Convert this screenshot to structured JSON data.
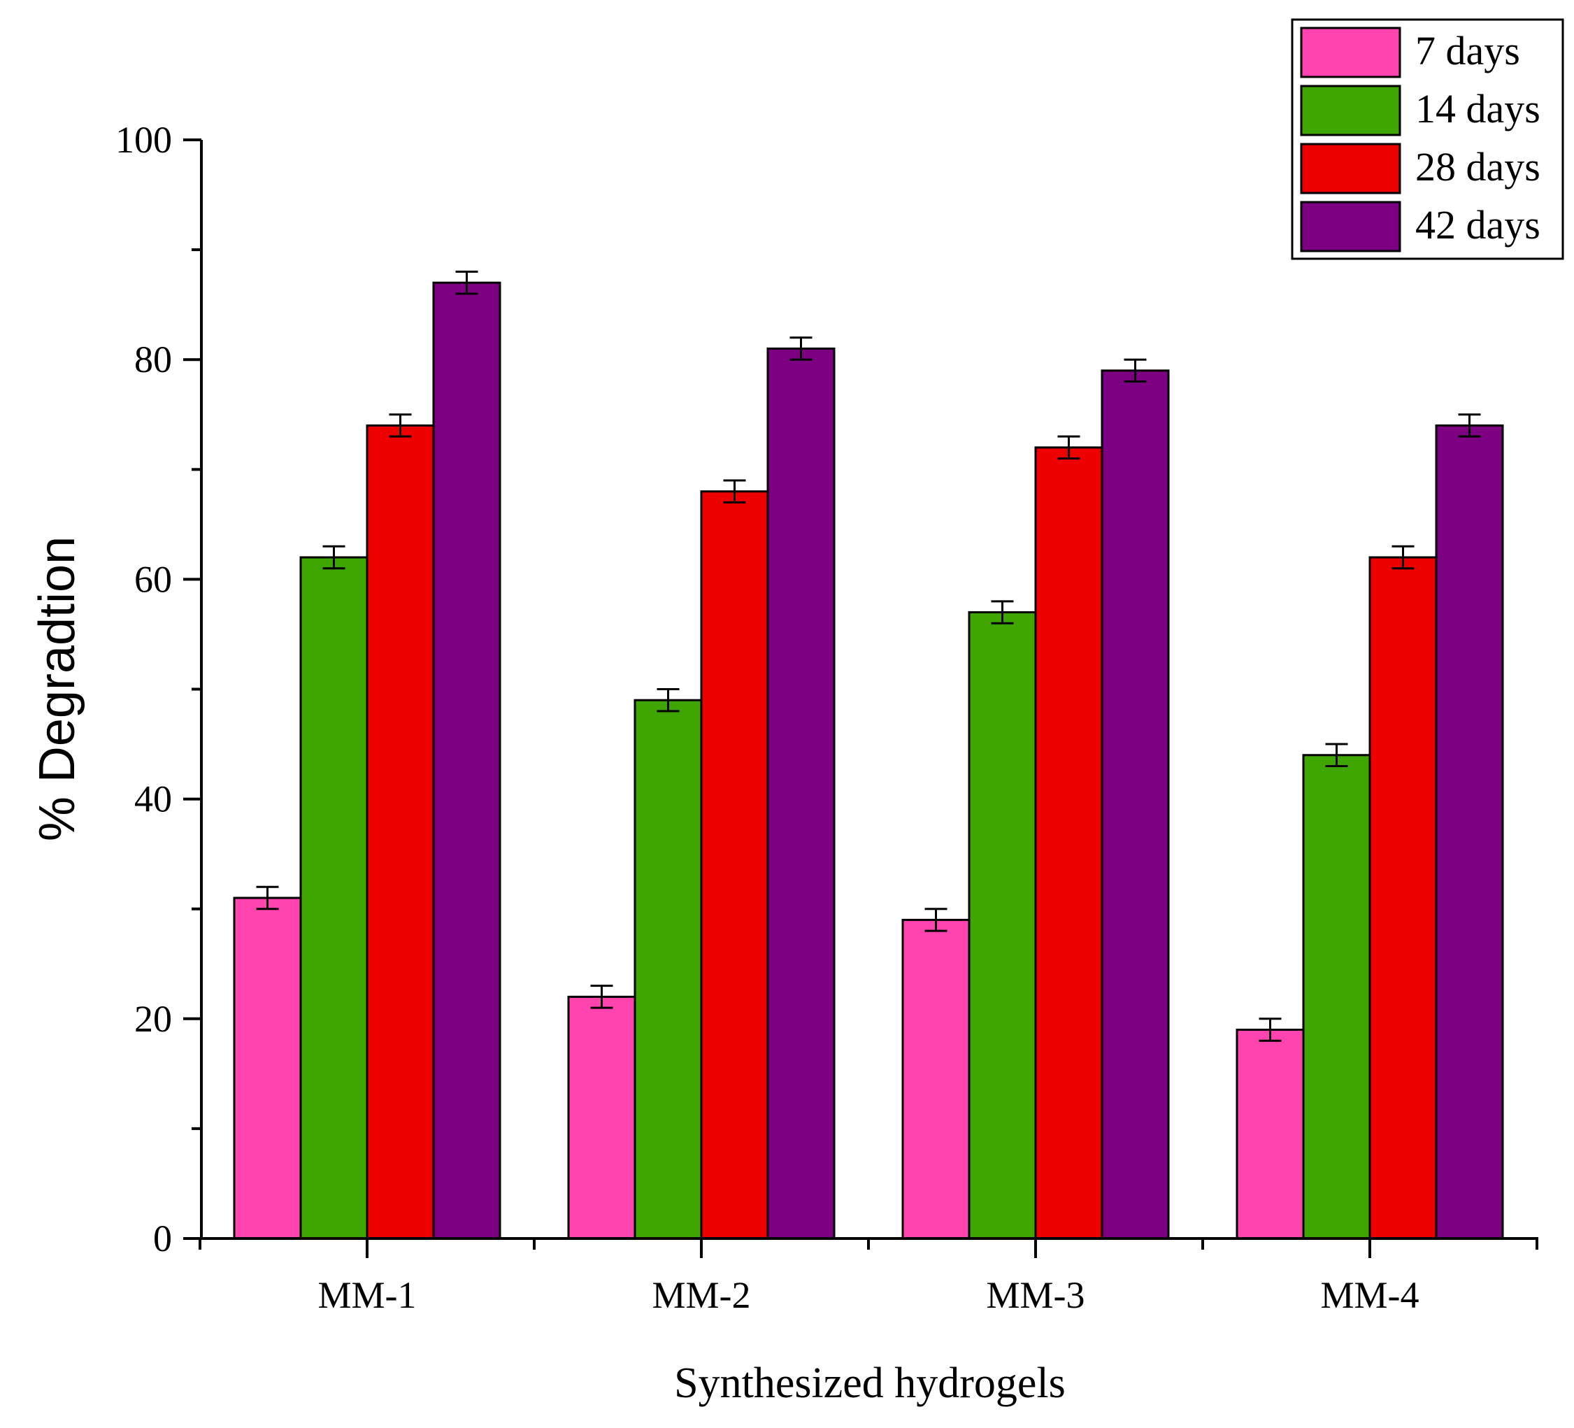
{
  "chart_data": {
    "type": "bar",
    "title": "",
    "xlabel": "Synthesized hydrogels",
    "ylabel": "% Degradtion",
    "categories": [
      "MM-1",
      "MM-2",
      "MM-3",
      "MM-4"
    ],
    "ylim": [
      0,
      100
    ],
    "yticks": [
      0,
      20,
      40,
      60,
      80,
      100
    ],
    "ytick_labels": [
      "0",
      "20",
      "40",
      "60",
      "80",
      "100"
    ],
    "series": [
      {
        "name": "7 days",
        "color": "#ff44b0",
        "values": [
          31,
          22,
          29,
          19
        ],
        "errors": [
          1,
          1,
          1,
          1
        ]
      },
      {
        "name": "14 days",
        "color": "#3fa500",
        "values": [
          62,
          49,
          57,
          44
        ],
        "errors": [
          1,
          1,
          1,
          1
        ]
      },
      {
        "name": "28 days",
        "color": "#ee0000",
        "values": [
          74,
          68,
          72,
          62
        ],
        "errors": [
          1,
          1,
          1,
          1
        ]
      },
      {
        "name": "42 days",
        "color": "#7d0082",
        "values": [
          87,
          81,
          79,
          74
        ],
        "errors": [
          1,
          1,
          1,
          1
        ]
      }
    ],
    "legend_position": "top-right",
    "grid": false
  }
}
